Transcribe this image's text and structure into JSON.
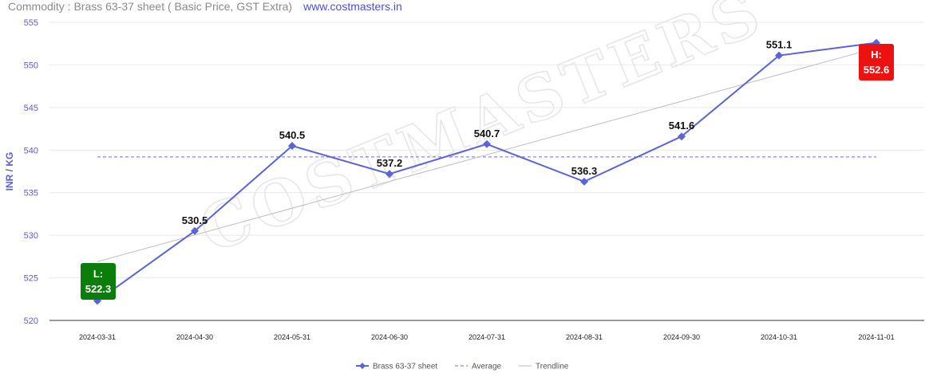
{
  "header": {
    "title": "Commodity : Brass 63-37 sheet ( Basic Price, GST Extra)",
    "site": "www.costmasters.in"
  },
  "watermark": "COSTMASTERS",
  "chart_data": {
    "type": "line",
    "categories": [
      "2024-03-31",
      "2024-04-30",
      "2024-05-31",
      "2024-06-30",
      "2024-07-31",
      "2024-08-31",
      "2024-09-30",
      "2024-10-31",
      "2024-11-01"
    ],
    "series": [
      {
        "name": "Brass 63-37 sheet",
        "values": [
          522.3,
          530.5,
          540.5,
          537.2,
          540.7,
          536.3,
          541.6,
          551.1,
          552.6
        ]
      }
    ],
    "data_labels": [
      "",
      "530.5",
      "540.5",
      "537.2",
      "540.7",
      "536.3",
      "541.6",
      "551.1",
      ""
    ],
    "average": 539.2,
    "trendline": {
      "start": 526.9,
      "end": 552.0
    },
    "ylabel": "INR / KG",
    "ylim": [
      520,
      555
    ],
    "yticks": [
      520,
      525,
      530,
      535,
      540,
      545,
      550,
      555
    ],
    "low": {
      "label": "L:",
      "value": "522.3",
      "color": "#0a7d0a"
    },
    "high": {
      "label": "H:",
      "value": "552.6",
      "color": "#ee1111"
    },
    "legend": {
      "series": "Brass 63-37 sheet",
      "average": "Average",
      "trendline": "Trendline"
    },
    "colors": {
      "series": "#5b63d8",
      "average": "#6a70cc",
      "trendline": "#bdbdbd",
      "grid": "#e8e8e8"
    },
    "legend_position": "bottom-center",
    "grid": true
  }
}
